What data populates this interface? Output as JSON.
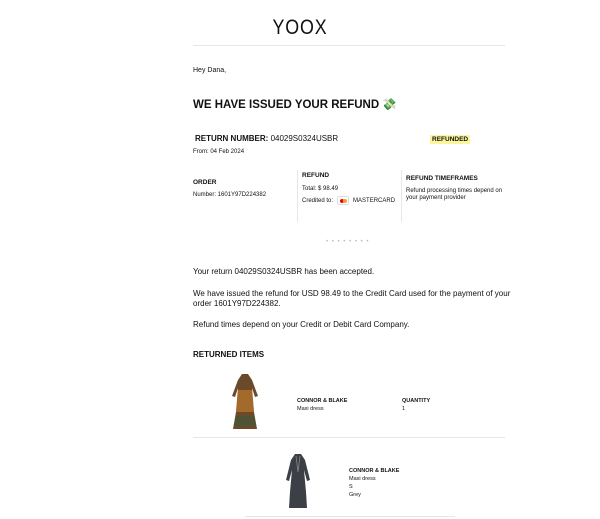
{
  "logo": "YOOX",
  "greeting": "Hey Dana,",
  "heading": "WE HAVE ISSUED YOUR REFUND",
  "heading_icon": "money-with-wings-icon",
  "return": {
    "label": "RETURN NUMBER:",
    "number": "04029S0324USBR",
    "status": "REFUNDED",
    "status_color": "#fbf59b",
    "from": "From: 04 Feb 2024"
  },
  "order": {
    "title": "ORDER",
    "number": "Number: 1601Y97D224382"
  },
  "refund": {
    "title": "REFUND",
    "total": "Total: $ 98.49",
    "credited_label": "Credited to:",
    "card": "MASTERCARD"
  },
  "timeframes": {
    "title": "REFUND TIMEFRAMES",
    "text": "Refund processing times depend on your payment provider"
  },
  "dots": "• • • • • • • •",
  "messages": [
    "Your return 04029S0324USBR has been accepted.",
    "We have issued the refund for USD 98.49 to the Credit Card used for the payment of your order 1601Y97D224382.",
    "Refund times depend on your Credit or Debit Card Company."
  ],
  "returned_title": "RETURNED ITEMS",
  "items": [
    {
      "brand": "CONNOR & BLAKE",
      "type": "Maxi dress",
      "quantity_label": "QUANTITY",
      "quantity": "1"
    },
    {
      "brand": "CONNOR & BLAKE",
      "type": "Maxi dress",
      "size": "S",
      "color": "Grey"
    }
  ]
}
